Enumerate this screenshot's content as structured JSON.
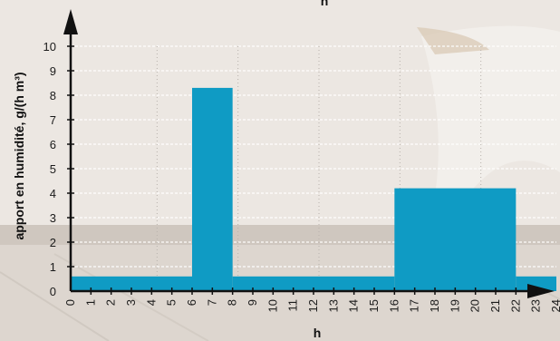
{
  "chart_data": {
    "type": "bar",
    "xlabel": "h",
    "ylabel": "apport en humidité, g/(h m³)",
    "top_label": "h",
    "xlim": [
      0,
      24
    ],
    "ylim": [
      0,
      10
    ],
    "x_ticks": [
      "0",
      "1",
      "2",
      "3",
      "4",
      "5",
      "6",
      "7",
      "8",
      "9",
      "10",
      "11",
      "12",
      "13",
      "14",
      "15",
      "16",
      "17",
      "18",
      "19",
      "20",
      "21",
      "22",
      "23",
      "24"
    ],
    "y_ticks": [
      "0",
      "1",
      "2",
      "3",
      "4",
      "5",
      "6",
      "7",
      "8",
      "9",
      "10"
    ],
    "series": [
      {
        "segments": [
          {
            "x_start": 0,
            "x_end": 6,
            "value": 0.6
          },
          {
            "x_start": 6,
            "x_end": 8,
            "value": 8.3
          },
          {
            "x_start": 8,
            "x_end": 16,
            "value": 0.6
          },
          {
            "x_start": 16,
            "x_end": 22,
            "value": 4.2
          },
          {
            "x_start": 22,
            "x_end": 24,
            "value": 0.6
          }
        ]
      }
    ],
    "grid": "horizontal dashed white, vertical dotted every 4 hours",
    "colors": {
      "bar": "#0f9bc4",
      "axis": "#111111",
      "grid": "#ffffff"
    }
  }
}
